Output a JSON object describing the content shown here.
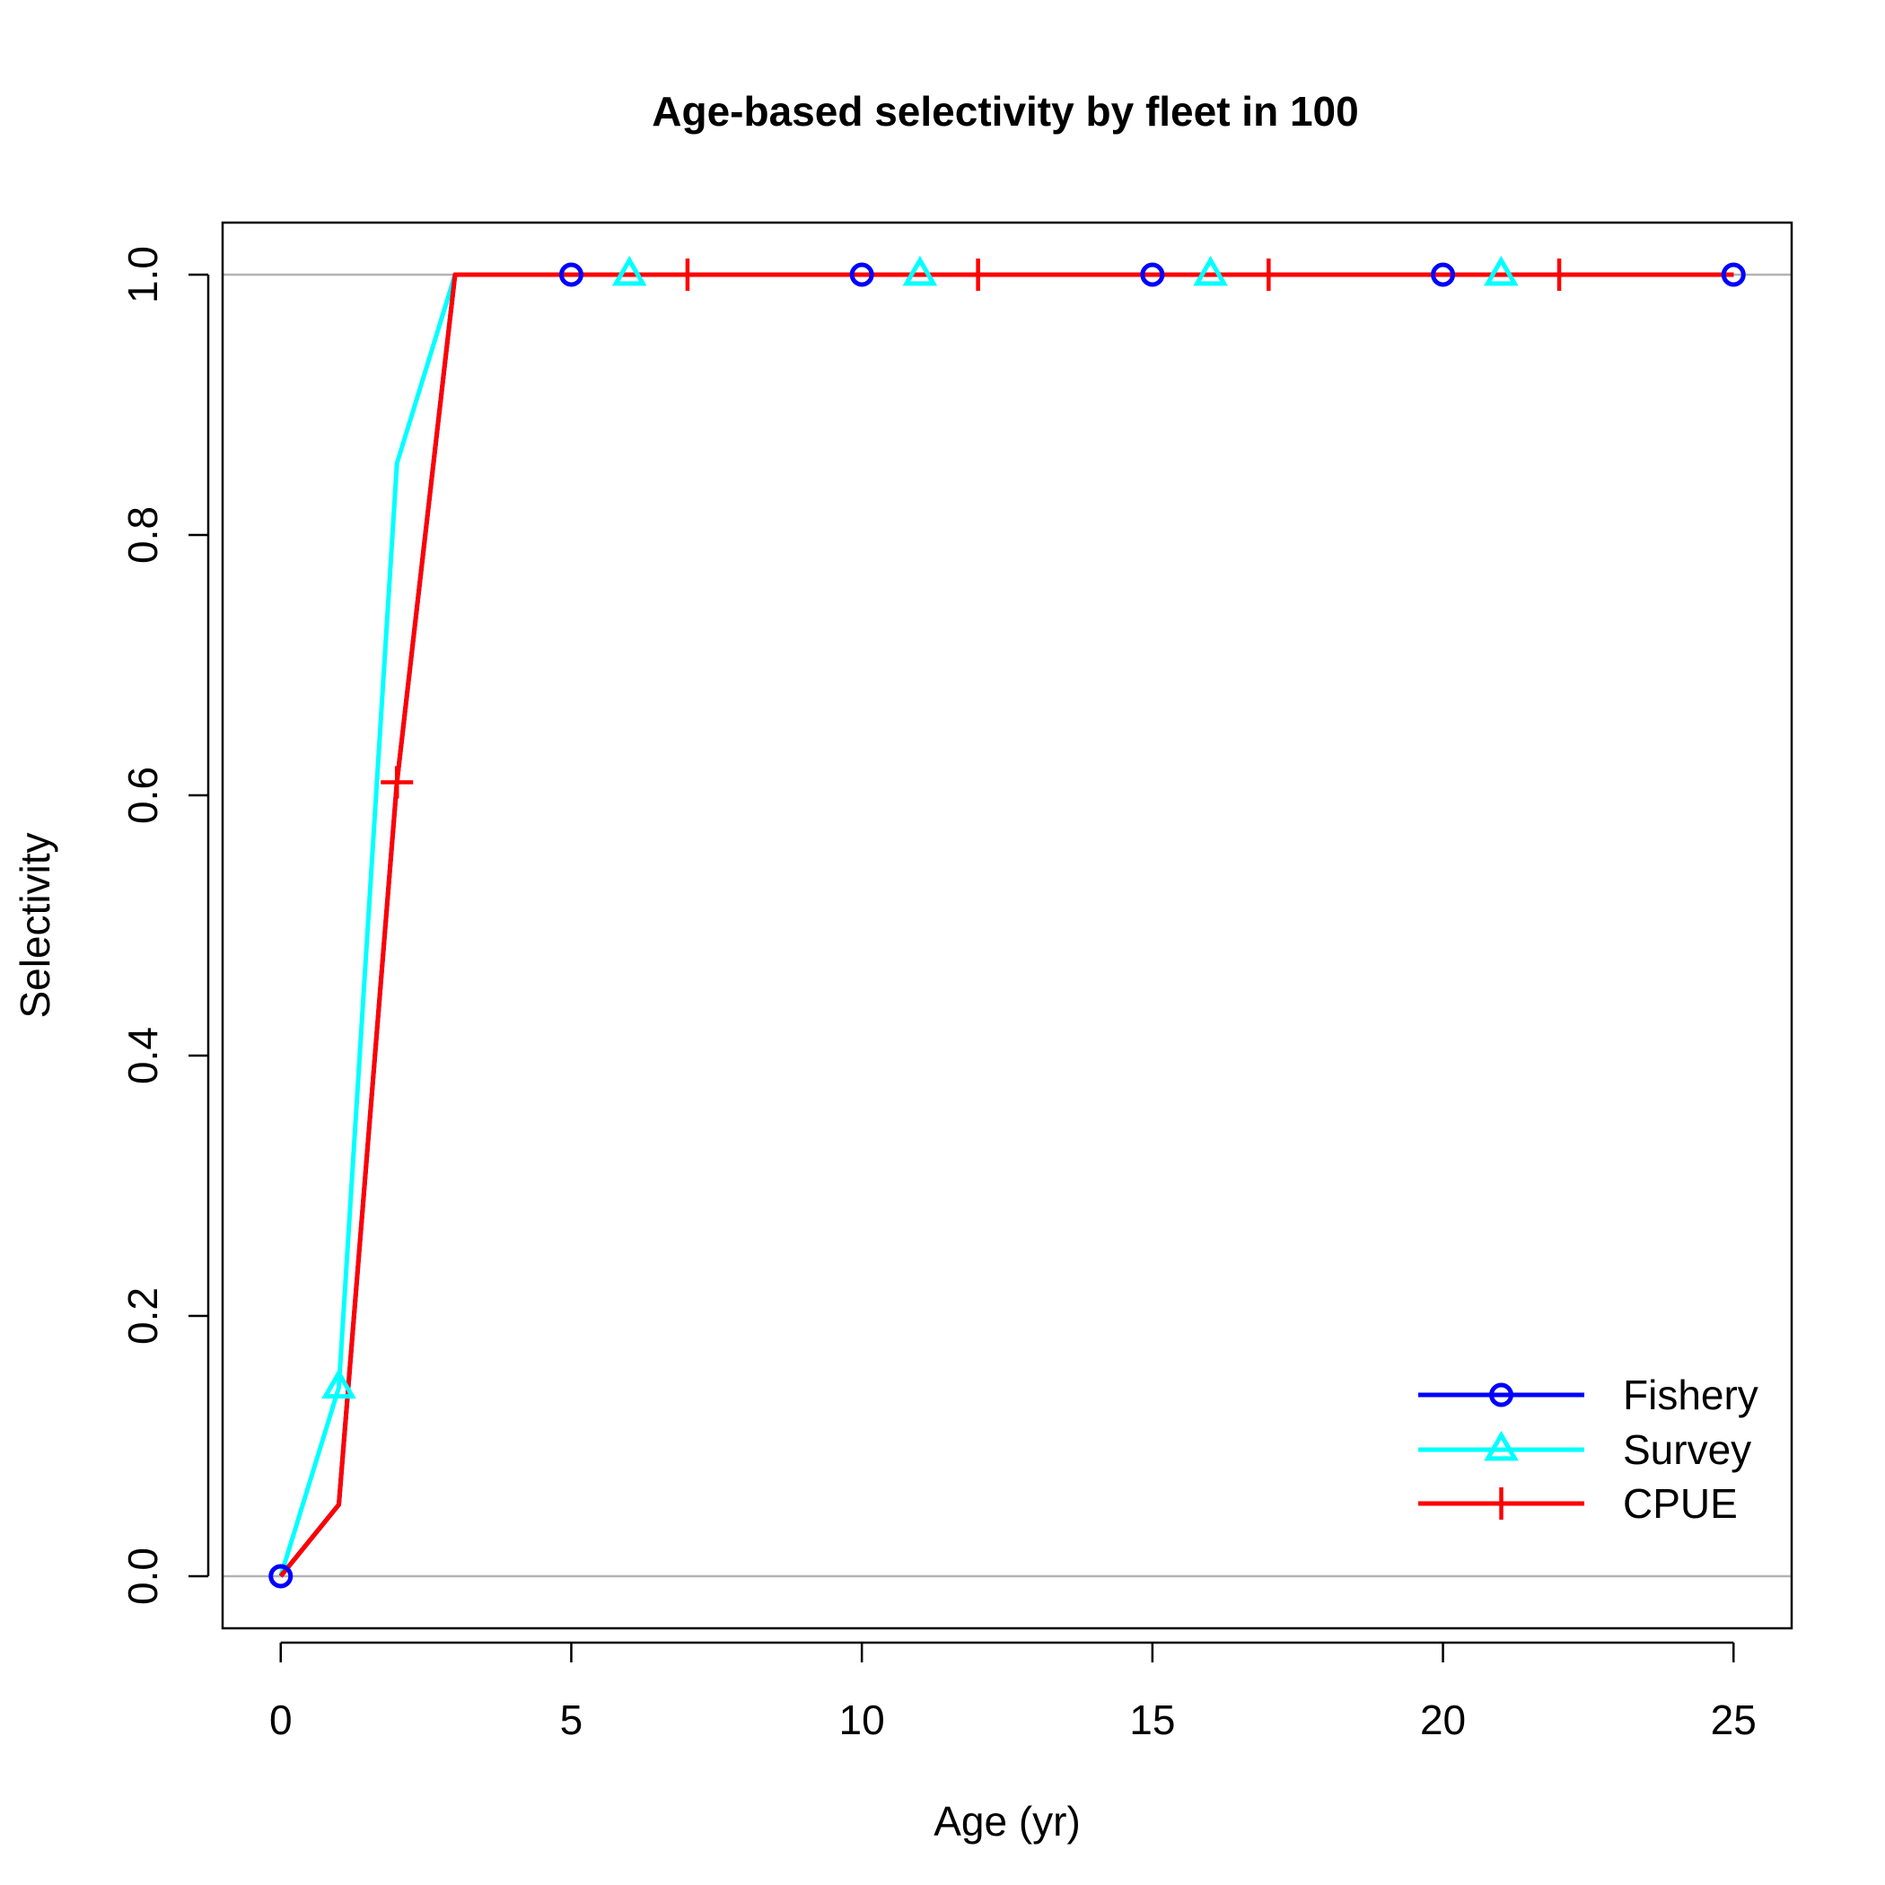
{
  "chart_data": {
    "type": "line",
    "title": "Age-based selectivity by fleet in 100",
    "xlabel": "Age (yr)",
    "ylabel": "Selectivity",
    "xlim": [
      -1,
      26
    ],
    "ylim": [
      -0.04,
      1.04
    ],
    "xticks": [
      0,
      5,
      10,
      15,
      20,
      25
    ],
    "xtick_labels": [
      "0",
      "5",
      "10",
      "15",
      "20",
      "25"
    ],
    "yticks": [
      0,
      0.2,
      0.4,
      0.6,
      0.8,
      1.0
    ],
    "ytick_labels": [
      "0.0",
      "0.2",
      "0.4",
      "0.6",
      "0.8",
      "1.0"
    ],
    "reference_lines": [
      0,
      1
    ],
    "reference_line_color": "#b3b3b3",
    "legend_position": "bottom-right",
    "x": [
      0,
      1,
      2,
      3,
      4,
      5,
      6,
      7,
      8,
      9,
      10,
      11,
      12,
      13,
      14,
      15,
      16,
      17,
      18,
      19,
      20,
      21,
      22,
      23,
      24,
      25
    ],
    "series": [
      {
        "name": "Fishery",
        "color": "#0000ff",
        "marker": "circle",
        "marker_x": [
          0,
          5,
          10,
          15,
          20,
          25
        ],
        "values": [
          0,
          0.055,
          0.61,
          1.0,
          1,
          1,
          1,
          1,
          1,
          1,
          1,
          1,
          1,
          1,
          1,
          1,
          1,
          1,
          1,
          1,
          1,
          1,
          1,
          1,
          1,
          1
        ]
      },
      {
        "name": "Survey",
        "color": "#00ffff",
        "marker": "triangle",
        "marker_x": [
          1,
          6,
          11,
          16,
          21
        ],
        "values": [
          0,
          0.145,
          0.855,
          1.0,
          1,
          1,
          1,
          1,
          1,
          1,
          1,
          1,
          1,
          1,
          1,
          1,
          1,
          1,
          1,
          1,
          1,
          1,
          1,
          1,
          1,
          1
        ]
      },
      {
        "name": "CPUE",
        "color": "#ff0000",
        "marker": "plus",
        "marker_x": [
          2,
          7,
          12,
          17,
          22
        ],
        "values": [
          0,
          0.055,
          0.61,
          1.0,
          1,
          1,
          1,
          1,
          1,
          1,
          1,
          1,
          1,
          1,
          1,
          1,
          1,
          1,
          1,
          1,
          1,
          1,
          1,
          1,
          1,
          1
        ]
      }
    ]
  }
}
